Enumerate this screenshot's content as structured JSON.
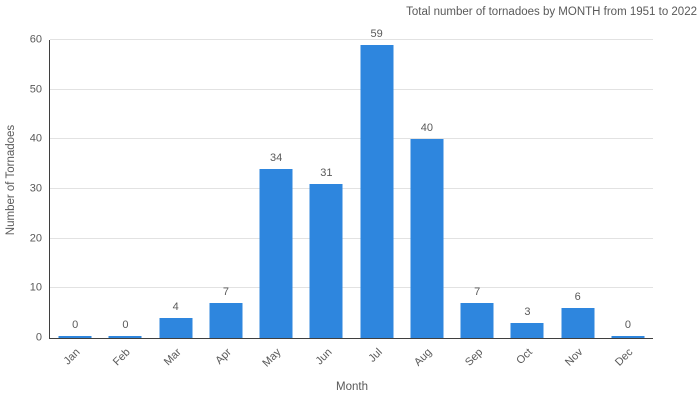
{
  "chart_data": {
    "type": "bar",
    "title": "Total number of tornadoes by MONTH from 1951 to 2022",
    "categories": [
      "Jan",
      "Feb",
      "Mar",
      "Apr",
      "May",
      "Jun",
      "Jul",
      "Aug",
      "Sep",
      "Oct",
      "Nov",
      "Dec"
    ],
    "values": [
      0,
      0,
      4,
      7,
      34,
      31,
      59,
      40,
      7,
      3,
      6,
      0
    ],
    "xlabel": "Month",
    "ylabel": "Number of Tornadoes",
    "ylim": [
      0,
      60
    ],
    "yticks": [
      0,
      10,
      20,
      30,
      40,
      50,
      60
    ],
    "grid": "horizontal",
    "legend": "none",
    "data_labels": true,
    "colors": {
      "bar": "#2e86de",
      "text": "#595959",
      "axis_line": "#3f3f3f",
      "gridline": "#e2e2e2",
      "background": "#ffffff"
    }
  }
}
